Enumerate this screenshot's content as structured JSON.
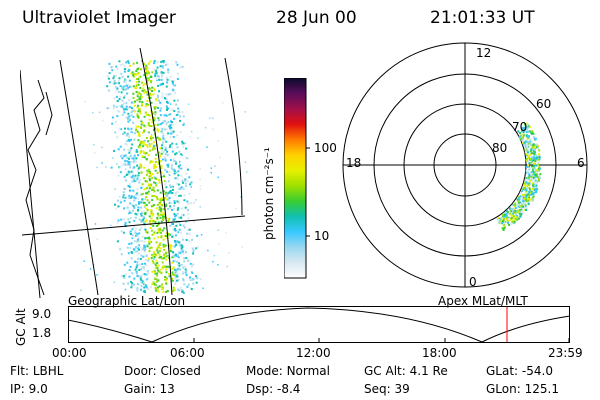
{
  "header": {
    "instrument": "Ultraviolet Imager",
    "date": "28 Jun 00",
    "time": "21:01:33 UT"
  },
  "geo_panel": {
    "label": "Geographic Lat/Lon"
  },
  "colorbar": {
    "unit": "photon cm⁻²s⁻¹",
    "ticks": [
      {
        "label": "100",
        "value": 100
      },
      {
        "label": "10",
        "value": 10
      }
    ],
    "colors": [
      "#0b0b2a",
      "#5a0c5a",
      "#a0104a",
      "#e01010",
      "#ff7a00",
      "#ffd000",
      "#e8f000",
      "#a0e000",
      "#3acd30",
      "#10c0b0",
      "#38c8ff",
      "#9ad8f0",
      "#d8e8f0",
      "#ffffff"
    ]
  },
  "polar_panel": {
    "label": "Apex MLat/MLT",
    "mlt_labels": {
      "top": "12",
      "bottom": "0",
      "left": "18",
      "right": "6"
    },
    "lat_labels": [
      "60",
      "70",
      "80"
    ]
  },
  "altitude_plot": {
    "ylabel": "GC Alt",
    "yticks": [
      "9.0",
      "1.8"
    ],
    "xticks": [
      "00:00",
      "06:00",
      "12:00",
      "18:00",
      "23:59"
    ],
    "current_time_marker": "21:01",
    "marker_color": "#ff0000"
  },
  "info": {
    "filter": {
      "label": "Flt:",
      "value": "LBHL"
    },
    "door": {
      "label": "Door:",
      "value": "Closed"
    },
    "mode": {
      "label": "Mode:",
      "value": "Normal"
    },
    "gc_alt": {
      "label": "GC Alt:",
      "value": "4.1 Re"
    },
    "glat": {
      "label": "GLat:",
      "value": "-54.0"
    },
    "ip": {
      "label": "IP:",
      "value": "9.0"
    },
    "gain": {
      "label": "Gain:",
      "value": "13"
    },
    "dsp": {
      "label": "Dsp:",
      "value": "-8.4"
    },
    "seq": {
      "label": "Seq:",
      "value": "39"
    },
    "glon": {
      "label": "GLon:",
      "value": "125.1"
    }
  }
}
